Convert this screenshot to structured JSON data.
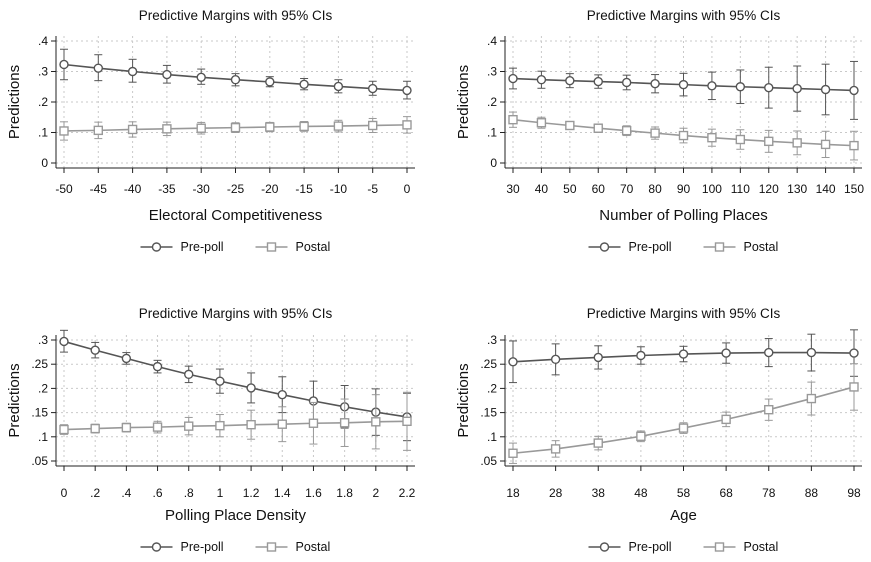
{
  "chart_data": [
    {
      "type": "line",
      "title": "Predictive Margins with 95% CIs",
      "xlabel": "Electoral Competitiveness",
      "ylabel": "Predictions",
      "x": [
        -50,
        -45,
        -40,
        -35,
        -30,
        -25,
        -20,
        -15,
        -10,
        -5,
        0
      ],
      "xticks": [
        -50,
        -45,
        -40,
        -35,
        -30,
        -25,
        -20,
        -15,
        -10,
        -5,
        0
      ],
      "xtick_labels": [
        "-50",
        "-45",
        "-40",
        "-35",
        "-30",
        "-25",
        "-20",
        "-15",
        "-10",
        "-5",
        "0"
      ],
      "xlim": [
        -50,
        0
      ],
      "yticks": [
        0,
        0.1,
        0.2,
        0.3,
        0.4
      ],
      "ytick_labels": [
        "0",
        ".1",
        ".2",
        ".3",
        ".4"
      ],
      "ylim": [
        0,
        0.4
      ],
      "grid": true,
      "legend": "bottom",
      "series": [
        {
          "name": "Pre-poll",
          "marker": "circle",
          "values": [
            0.323,
            0.311,
            0.3,
            0.29,
            0.281,
            0.273,
            0.266,
            0.258,
            0.251,
            0.244,
            0.238
          ],
          "ci_low": [
            0.273,
            0.27,
            0.265,
            0.262,
            0.258,
            0.253,
            0.25,
            0.24,
            0.23,
            0.222,
            0.21
          ],
          "ci_high": [
            0.373,
            0.355,
            0.34,
            0.32,
            0.308,
            0.293,
            0.283,
            0.277,
            0.273,
            0.268,
            0.268
          ]
        },
        {
          "name": "Postal",
          "marker": "square",
          "values": [
            0.105,
            0.107,
            0.11,
            0.112,
            0.114,
            0.116,
            0.118,
            0.12,
            0.121,
            0.123,
            0.125
          ],
          "ci_low": [
            0.075,
            0.08,
            0.085,
            0.09,
            0.095,
            0.1,
            0.103,
            0.104,
            0.102,
            0.1,
            0.098
          ],
          "ci_high": [
            0.135,
            0.134,
            0.135,
            0.134,
            0.133,
            0.132,
            0.133,
            0.136,
            0.14,
            0.146,
            0.152
          ]
        }
      ]
    },
    {
      "type": "line",
      "title": "Predictive Margins with 95% CIs",
      "xlabel": "Number of Polling Places",
      "ylabel": "Predictions",
      "x": [
        30,
        40,
        50,
        60,
        70,
        80,
        90,
        100,
        110,
        120,
        130,
        140,
        150
      ],
      "xticks": [
        30,
        40,
        50,
        60,
        70,
        80,
        90,
        100,
        110,
        120,
        130,
        140,
        150
      ],
      "xtick_labels": [
        "30",
        "40",
        "50",
        "60",
        "70",
        "80",
        "90",
        "100",
        "110",
        "120",
        "130",
        "140",
        "150"
      ],
      "xlim": [
        30,
        150
      ],
      "yticks": [
        0,
        0.1,
        0.2,
        0.3,
        0.4
      ],
      "ytick_labels": [
        "0",
        ".1",
        ".2",
        ".3",
        ".4"
      ],
      "ylim": [
        0,
        0.4
      ],
      "grid": true,
      "legend": "bottom",
      "series": [
        {
          "name": "Pre-poll",
          "marker": "circle",
          "values": [
            0.277,
            0.273,
            0.27,
            0.267,
            0.264,
            0.26,
            0.257,
            0.253,
            0.25,
            0.247,
            0.244,
            0.241,
            0.238
          ],
          "ci_low": [
            0.243,
            0.245,
            0.247,
            0.245,
            0.24,
            0.23,
            0.22,
            0.208,
            0.195,
            0.18,
            0.17,
            0.158,
            0.143
          ],
          "ci_high": [
            0.311,
            0.301,
            0.293,
            0.289,
            0.288,
            0.29,
            0.294,
            0.298,
            0.305,
            0.314,
            0.318,
            0.324,
            0.333
          ]
        },
        {
          "name": "Postal",
          "marker": "square",
          "values": [
            0.142,
            0.132,
            0.123,
            0.114,
            0.106,
            0.098,
            0.09,
            0.083,
            0.077,
            0.071,
            0.066,
            0.061,
            0.057
          ],
          "ci_low": [
            0.117,
            0.114,
            0.11,
            0.1,
            0.09,
            0.078,
            0.066,
            0.055,
            0.045,
            0.035,
            0.027,
            0.018,
            0.01
          ],
          "ci_high": [
            0.167,
            0.15,
            0.136,
            0.128,
            0.122,
            0.118,
            0.114,
            0.111,
            0.109,
            0.107,
            0.105,
            0.104,
            0.104
          ]
        }
      ]
    },
    {
      "type": "line",
      "title": "Predictive Margins with 95% CIs",
      "xlabel": "Polling Place Density",
      "ylabel": "Predictions",
      "x": [
        0,
        0.2,
        0.4,
        0.6,
        0.8,
        1.0,
        1.2,
        1.4,
        1.6,
        1.8,
        2.0,
        2.2
      ],
      "xticks": [
        0,
        0.2,
        0.4,
        0.6,
        0.8,
        1.0,
        1.2,
        1.4,
        1.6,
        1.8,
        2.0,
        2.2
      ],
      "xtick_labels": [
        "0",
        ".2",
        ".4",
        ".6",
        ".8",
        "1",
        "1.2",
        "1.4",
        "1.6",
        "1.8",
        "2",
        "2.2"
      ],
      "xlim": [
        0,
        2.2
      ],
      "yticks": [
        0.05,
        0.1,
        0.15,
        0.2,
        0.25,
        0.3
      ],
      "ytick_labels": [
        ".05",
        ".1",
        ".15",
        ".2",
        ".25",
        ".3"
      ],
      "ylim": [
        0.05,
        0.3
      ],
      "grid": true,
      "legend": "bottom",
      "series": [
        {
          "name": "Pre-poll",
          "marker": "circle",
          "values": [
            0.297,
            0.279,
            0.262,
            0.245,
            0.229,
            0.215,
            0.201,
            0.187,
            0.174,
            0.162,
            0.151,
            0.141
          ],
          "ci_low": [
            0.275,
            0.263,
            0.25,
            0.232,
            0.212,
            0.19,
            0.17,
            0.15,
            0.133,
            0.118,
            0.103,
            0.092
          ],
          "ci_high": [
            0.32,
            0.295,
            0.274,
            0.258,
            0.246,
            0.24,
            0.232,
            0.224,
            0.215,
            0.206,
            0.199,
            0.19
          ]
        },
        {
          "name": "Postal",
          "marker": "square",
          "values": [
            0.115,
            0.117,
            0.119,
            0.12,
            0.122,
            0.123,
            0.125,
            0.126,
            0.128,
            0.129,
            0.131,
            0.132
          ],
          "ci_low": [
            0.105,
            0.108,
            0.11,
            0.108,
            0.104,
            0.1,
            0.095,
            0.09,
            0.085,
            0.08,
            0.075,
            0.072
          ],
          "ci_high": [
            0.125,
            0.126,
            0.128,
            0.132,
            0.14,
            0.146,
            0.155,
            0.162,
            0.171,
            0.178,
            0.187,
            0.192
          ]
        }
      ]
    },
    {
      "type": "line",
      "title": "Predictive Margins with 95% CIs",
      "xlabel": "Age",
      "ylabel": "Predictions",
      "x": [
        18,
        28,
        38,
        48,
        58,
        68,
        78,
        88,
        98
      ],
      "xticks": [
        18,
        28,
        38,
        48,
        58,
        68,
        78,
        88,
        98
      ],
      "xtick_labels": [
        "18",
        "28",
        "38",
        "48",
        "58",
        "68",
        "78",
        "88",
        "98"
      ],
      "xlim": [
        18,
        98
      ],
      "yticks": [
        0.05,
        0.1,
        0.15,
        0.2,
        0.25,
        0.3
      ],
      "ytick_labels": [
        ".05",
        ".1",
        ".15",
        ".2",
        ".25",
        ".3"
      ],
      "ylim": [
        0.05,
        0.3
      ],
      "grid": true,
      "legend": "bottom",
      "series": [
        {
          "name": "Pre-poll",
          "marker": "circle",
          "values": [
            0.255,
            0.26,
            0.264,
            0.268,
            0.271,
            0.273,
            0.274,
            0.274,
            0.273
          ],
          "ci_low": [
            0.212,
            0.228,
            0.24,
            0.25,
            0.255,
            0.252,
            0.245,
            0.236,
            0.225
          ],
          "ci_high": [
            0.298,
            0.292,
            0.288,
            0.286,
            0.287,
            0.294,
            0.303,
            0.312,
            0.321
          ]
        },
        {
          "name": "Postal",
          "marker": "square",
          "values": [
            0.066,
            0.075,
            0.087,
            0.101,
            0.118,
            0.136,
            0.156,
            0.179,
            0.203
          ],
          "ci_low": [
            0.045,
            0.058,
            0.073,
            0.09,
            0.107,
            0.121,
            0.134,
            0.145,
            0.155
          ],
          "ci_high": [
            0.087,
            0.092,
            0.101,
            0.112,
            0.129,
            0.151,
            0.178,
            0.213,
            0.251
          ]
        }
      ]
    }
  ],
  "colors": {
    "prepoll": "#555555",
    "postal": "#999999",
    "axis": "#222222",
    "grid": "#c9c9c9"
  }
}
